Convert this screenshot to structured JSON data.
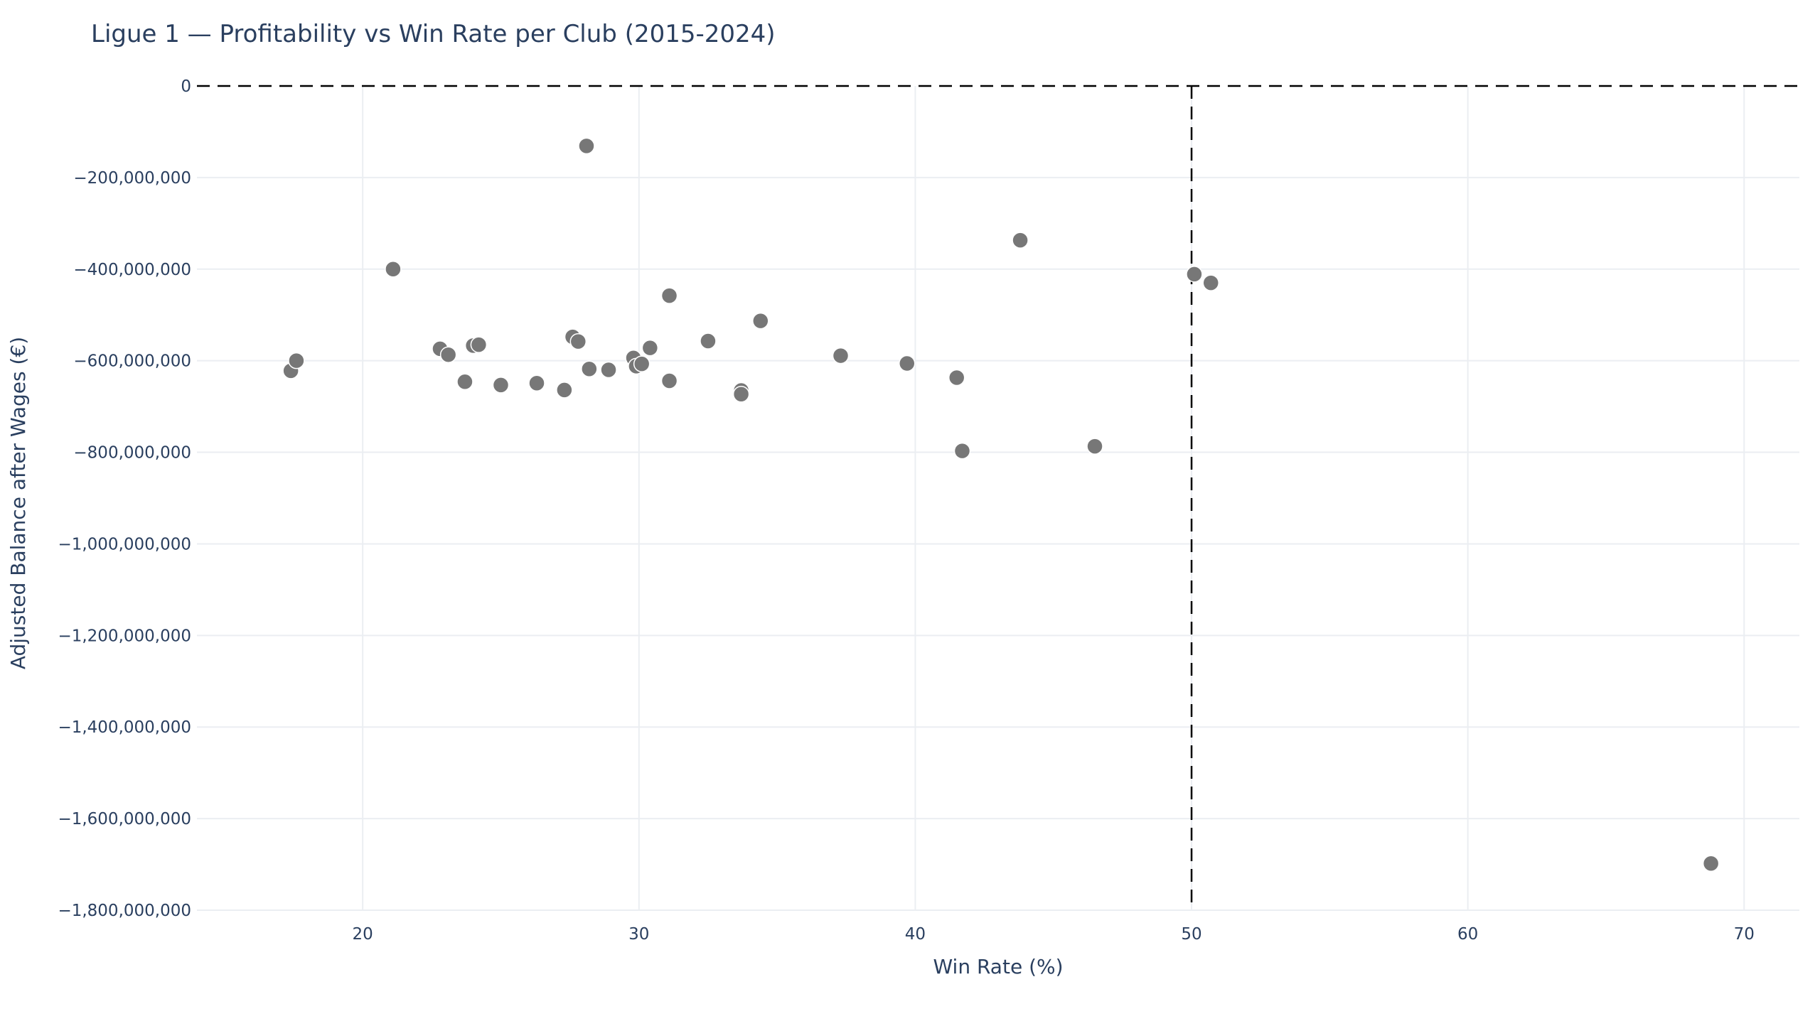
{
  "chart_data": {
    "type": "scatter",
    "title": "Ligue 1 — Profitability vs Win Rate per Club (2015-2024)",
    "xlabel": "Win Rate (%)",
    "ylabel": "Adjusted Balance after Wages (€)",
    "xlim": [
      14,
      72
    ],
    "ylim": [
      -1800000000,
      0
    ],
    "x_ticks": [
      20,
      30,
      40,
      50,
      60,
      70
    ],
    "y_ticks": [
      0,
      -200000000,
      -400000000,
      -600000000,
      -800000000,
      -1000000000,
      -1200000000,
      -1400000000,
      -1600000000,
      -1800000000
    ],
    "y_tick_labels": [
      "0",
      "−200,000,000",
      "−400,000,000",
      "−600,000,000",
      "−800,000,000",
      "−1,000,000,000",
      "−1,200,000,000",
      "−1,400,000,000",
      "−1,600,000,000",
      "−1,800,000,000"
    ],
    "reference_lines": {
      "horizontal_y": 0,
      "vertical_x": 50
    },
    "grid": true,
    "legend": "none",
    "point_color": "#777777",
    "points": [
      {
        "x": 17.4,
        "y": -622000000
      },
      {
        "x": 17.6,
        "y": -600000000
      },
      {
        "x": 21.1,
        "y": -400000000
      },
      {
        "x": 22.8,
        "y": -574000000
      },
      {
        "x": 23.1,
        "y": -587000000
      },
      {
        "x": 23.7,
        "y": -646000000
      },
      {
        "x": 24.0,
        "y": -567000000
      },
      {
        "x": 24.2,
        "y": -565000000
      },
      {
        "x": 25.0,
        "y": -653000000
      },
      {
        "x": 26.3,
        "y": -649000000
      },
      {
        "x": 27.3,
        "y": -664000000
      },
      {
        "x": 27.6,
        "y": -548000000
      },
      {
        "x": 27.8,
        "y": -558000000
      },
      {
        "x": 28.1,
        "y": -131000000
      },
      {
        "x": 28.2,
        "y": -618000000
      },
      {
        "x": 28.9,
        "y": -620000000
      },
      {
        "x": 29.8,
        "y": -594000000
      },
      {
        "x": 29.9,
        "y": -612000000
      },
      {
        "x": 30.1,
        "y": -607000000
      },
      {
        "x": 30.4,
        "y": -572000000
      },
      {
        "x": 31.1,
        "y": -458000000
      },
      {
        "x": 31.1,
        "y": -644000000
      },
      {
        "x": 32.5,
        "y": -557000000
      },
      {
        "x": 33.7,
        "y": -665000000
      },
      {
        "x": 33.7,
        "y": -673000000
      },
      {
        "x": 34.4,
        "y": -513000000
      },
      {
        "x": 37.3,
        "y": -589000000
      },
      {
        "x": 39.7,
        "y": -606000000
      },
      {
        "x": 41.5,
        "y": -637000000
      },
      {
        "x": 41.7,
        "y": -797000000
      },
      {
        "x": 43.8,
        "y": -337000000
      },
      {
        "x": 46.5,
        "y": -787000000
      },
      {
        "x": 50.1,
        "y": -411000000
      },
      {
        "x": 50.7,
        "y": -430000000
      },
      {
        "x": 68.8,
        "y": -1698000000
      }
    ]
  }
}
